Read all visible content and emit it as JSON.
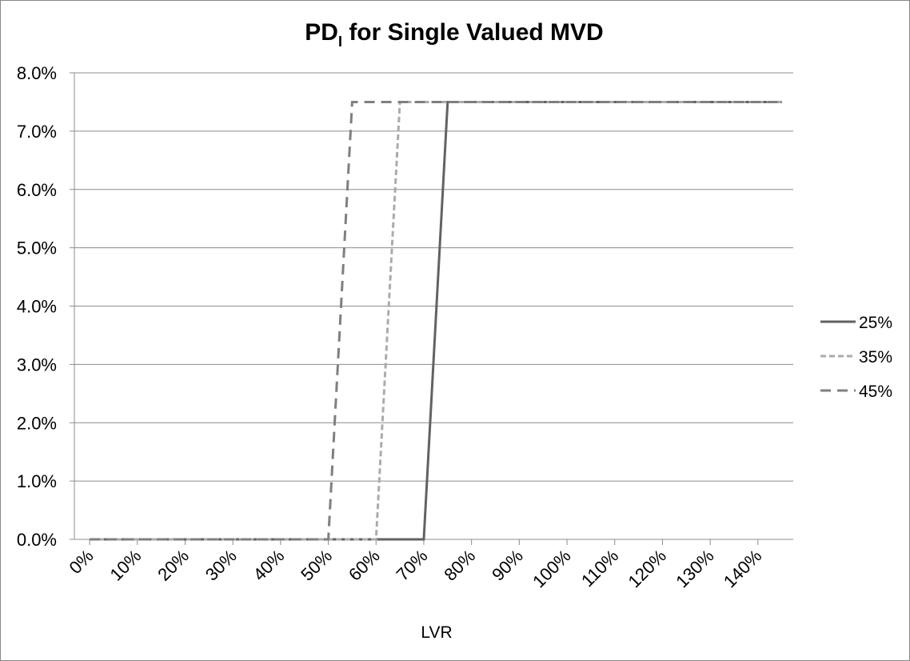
{
  "chart_data": {
    "type": "line",
    "title": [
      "PD",
      "I",
      " for Single Valued MVD"
    ],
    "x_label": "LVR",
    "xlim": [
      -3.2,
      147.4
    ],
    "xticks": [
      {
        "value": 0,
        "label": "0%"
      },
      {
        "value": 10,
        "label": "10%"
      },
      {
        "value": 20,
        "label": "20%"
      },
      {
        "value": 30,
        "label": "30%"
      },
      {
        "value": 40,
        "label": "40%"
      },
      {
        "value": 50,
        "label": "50%"
      },
      {
        "value": 60,
        "label": "60%"
      },
      {
        "value": 70,
        "label": "70%"
      },
      {
        "value": 80,
        "label": "80%"
      },
      {
        "value": 90,
        "label": "90%"
      },
      {
        "value": 100,
        "label": "100%"
      },
      {
        "value": 110,
        "label": "110%"
      },
      {
        "value": 120,
        "label": "120%"
      },
      {
        "value": 130,
        "label": "130%"
      },
      {
        "value": 140,
        "label": "140%"
      }
    ],
    "ylim": [
      0,
      8
    ],
    "yticks": [
      {
        "value": 0,
        "label": "0.0%"
      },
      {
        "value": 1,
        "label": "1.0%"
      },
      {
        "value": 2,
        "label": "2.0%"
      },
      {
        "value": 3,
        "label": "3.0%"
      },
      {
        "value": 4,
        "label": "4.0%"
      },
      {
        "value": 5,
        "label": "5.0%"
      },
      {
        "value": 6,
        "label": "6.0%"
      },
      {
        "value": 7,
        "label": "7.0%"
      },
      {
        "value": 8,
        "label": "8.0%"
      }
    ],
    "grid": true,
    "legend": "right",
    "series": [
      {
        "name": "25%",
        "color": "#626262",
        "dash": "solid",
        "x": [
          0,
          70,
          75,
          145
        ],
        "values": [
          0,
          0,
          7.5,
          7.5
        ]
      },
      {
        "name": "35%",
        "color": "#ababab",
        "dash": "dotted",
        "x": [
          0,
          60,
          65,
          145
        ],
        "values": [
          0,
          0,
          7.5,
          7.5
        ]
      },
      {
        "name": "45%",
        "color": "#7f7f7f",
        "dash": "dashed",
        "x": [
          0,
          50,
          55,
          145
        ],
        "values": [
          0,
          0,
          7.5,
          7.5
        ]
      }
    ]
  }
}
